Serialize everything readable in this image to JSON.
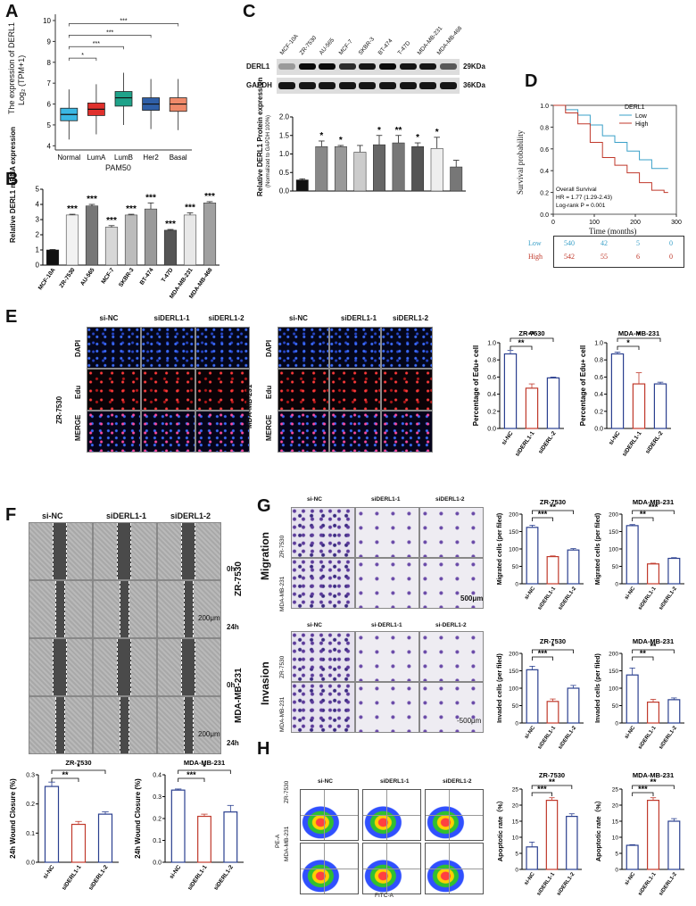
{
  "panels": {
    "A": {
      "label": "A",
      "ylabel": "The expression of DERL1",
      "ylabel2": "Log₂ (TPM+1)",
      "xlabel": "PAM50",
      "categories": [
        "Normal",
        "LumA",
        "LumB",
        "Her2",
        "Basal"
      ],
      "yticks": [
        "4",
        "5",
        "6",
        "7",
        "8",
        "9",
        "10"
      ],
      "sig": [
        "*",
        "***",
        "***",
        "***"
      ]
    },
    "B": {
      "label": "B",
      "ylabel": "Relative DERL1 mRNA expression",
      "yticks": [
        "0",
        "1",
        "2",
        "3",
        "4",
        "5"
      ],
      "categories": [
        "MCF-10A",
        "ZR-7530",
        "AU-565",
        "MCF-7",
        "SKBR-3",
        "BT-474",
        "T-47D",
        "MDA-MB-231",
        "MDA-MB-468"
      ],
      "sig": [
        "",
        "***",
        "***",
        "***",
        "***",
        "***",
        "***",
        "***",
        "***"
      ]
    },
    "C": {
      "label": "C",
      "lanes": [
        "MCF-10A",
        "ZR-7530",
        "AU-565",
        "MCF-7",
        "SKBR-3",
        "BT-474",
        "T-47D",
        "MDA-MB-231",
        "MDA-MB-468"
      ],
      "band1": "DERL1",
      "band2": "GAPDH",
      "kda1": "29KDa",
      "kda2": "36KDa",
      "ylabel": "Relative DERL1 Protein expression",
      "ylabel2": "(Normalized to GAPDH 100%)",
      "yticks": [
        "0.0",
        "0.5",
        "1.0",
        "1.5",
        "2.0"
      ],
      "sig": [
        "",
        "*",
        "*",
        "",
        "*",
        "**",
        "*",
        "*",
        ""
      ]
    },
    "D": {
      "label": "D",
      "legend_title": "DERL1",
      "legend_low": "Low",
      "legend_high": "High",
      "ylabel": "Survival probability",
      "xlabel": "Time (months)",
      "yticks": [
        "0.0",
        "0.2",
        "0.4",
        "0.6",
        "0.8",
        "1.0"
      ],
      "xticks": [
        "0",
        "100",
        "200",
        "300"
      ],
      "stat1": "Overall Survival",
      "stat2": "HR = 1.77 (1.29-2.43)",
      "stat3": "Log-rank P = 0.001",
      "risk_low": [
        "Low",
        "540",
        "42",
        "5",
        "0"
      ],
      "risk_high": [
        "High",
        "542",
        "55",
        "6",
        "0"
      ]
    },
    "E": {
      "label": "E",
      "groups": [
        "si-NC",
        "siDERL1-1",
        "siDERL1-2"
      ],
      "rows": [
        "DAPI",
        "Edu",
        "MERGE"
      ],
      "cell1": "ZR-7530",
      "cell2": "MDA-MB-231",
      "scale": "200μm",
      "chart_title1": "ZR-7530",
      "chart_title2": "MDA-MB-231",
      "ylabel": "Percentage of Edu+ cell",
      "yticks": [
        "0.0",
        "0.2",
        "0.4",
        "0.6",
        "0.8",
        "1.0"
      ],
      "xcats": [
        "si-NC",
        "siDERL1-1",
        "siDERL-2"
      ],
      "sig1": [
        "**",
        "**"
      ],
      "sig2": [
        "*",
        "*"
      ]
    },
    "F": {
      "label": "F",
      "groups": [
        "si-NC",
        "siDERL1-1",
        "siDERL1-2"
      ],
      "cell1": "ZR-7530",
      "cell2": "MDA-MB-231",
      "t0": "0h",
      "t24": "24h",
      "scale": "200μm",
      "chart_title1": "ZR-7530",
      "chart_title2": "MDA-MB-231",
      "ylabel": "24h Wound Closure (%)",
      "yticks1": [
        "0.0",
        "0.1",
        "0.2",
        "0.3"
      ],
      "yticks2": [
        "0.0",
        "0.1",
        "0.2",
        "0.3",
        "0.4"
      ],
      "xcats": [
        "si-NC",
        "siDERL1-1",
        "siDERL1-2"
      ],
      "sig1": [
        "**",
        "*"
      ],
      "sig2": [
        "***",
        "*"
      ]
    },
    "G": {
      "label": "G",
      "groups_top": [
        "si-NC",
        "siDERL1-1",
        "siDERL1-2"
      ],
      "groups_bot": [
        "si-NC",
        "si-DERL1-1",
        "si-DERL1-2"
      ],
      "row_mig": "Migration",
      "row_inv": "Invasion",
      "cell1": "ZR-7530",
      "cell2": "MDA-MB-231",
      "scale": "500μm",
      "scale2": "-500μm",
      "chart_titles": [
        "ZR-7530",
        "MDA-MB-231",
        "ZR-7530",
        "MDA-MB-231"
      ],
      "ylabel_mig": "Migrated cells (per filed)",
      "ylabel_inv": "Invaded cells (per filed)",
      "yticks_mig1": [
        "0",
        "50",
        "100",
        "150",
        "200"
      ],
      "yticks_mig2": [
        "0",
        "50",
        "100",
        "150",
        "200"
      ],
      "yticks_inv1": [
        "0",
        "50",
        "100",
        "150",
        "200"
      ],
      "yticks_inv2": [
        "0",
        "50",
        "100",
        "150",
        "200"
      ],
      "xcats": [
        "si-NC",
        "siDERL1-1",
        "siDERL1-2"
      ],
      "sig_mig1": [
        "***",
        "**"
      ],
      "sig_mig2": [
        "**",
        "***"
      ],
      "sig_inv1": [
        "***",
        "*"
      ],
      "sig_inv2": [
        "**",
        "**"
      ]
    },
    "H": {
      "label": "H",
      "groups": [
        "si-NC",
        "siDERL1-1",
        "siDERL1-2"
      ],
      "cell1": "ZR-7530",
      "cell2": "MDA-MB-231",
      "xaxis": "FITC-A",
      "yaxis": "PE-A",
      "chart_title1": "ZR-7530",
      "chart_title2": "MDA-MB-231",
      "ylabel": "Apoptotic rate（%）",
      "yticks1": [
        "0",
        "5",
        "10",
        "15",
        "20",
        "25"
      ],
      "yticks2": [
        "0",
        "5",
        "10",
        "15",
        "20",
        "25"
      ],
      "xcats": [
        "si-NC",
        "siDERL1-1",
        "siDERL1-2"
      ],
      "sig1": [
        "***",
        "**"
      ],
      "sig2": [
        "***",
        "**"
      ]
    }
  },
  "chart_data": [
    {
      "type": "box",
      "id": "A",
      "categories": [
        "Normal",
        "LumA",
        "LumB",
        "Her2",
        "Basal"
      ],
      "median": [
        5.5,
        5.75,
        6.3,
        6.0,
        6.0
      ],
      "q1": [
        5.2,
        5.45,
        5.9,
        5.7,
        5.65
      ],
      "q3": [
        5.8,
        6.05,
        6.6,
        6.3,
        6.3
      ],
      "ylim": [
        3.8,
        10.3
      ],
      "colors": [
        "#3bb7e3",
        "#e0302c",
        "#1fa38a",
        "#2f5fa7",
        "#f08a6a"
      ]
    },
    {
      "type": "bar",
      "id": "B",
      "categories": [
        "MCF-10A",
        "ZR-7530",
        "AU-565",
        "MCF-7",
        "SKBR-3",
        "BT-474",
        "T-47D",
        "MDA-MB-231",
        "MDA-MB-468"
      ],
      "values": [
        1.0,
        3.3,
        3.9,
        2.5,
        3.3,
        3.7,
        2.3,
        3.3,
        4.1
      ],
      "errors": [
        0.03,
        0.05,
        0.1,
        0.1,
        0.05,
        0.4,
        0.05,
        0.15,
        0.08
      ],
      "ylim": [
        0,
        5
      ]
    },
    {
      "type": "bar",
      "id": "C",
      "categories": [
        "MCF-10A",
        "ZR-7530",
        "AU-565",
        "MCF-7",
        "SKBR-3",
        "BT-474",
        "T-47D",
        "MDA-MB-231",
        "MDA-MB-468"
      ],
      "values": [
        0.3,
        1.2,
        1.2,
        1.05,
        1.25,
        1.3,
        1.2,
        1.15,
        0.65
      ],
      "errors": [
        0.03,
        0.15,
        0.03,
        0.18,
        0.25,
        0.2,
        0.1,
        0.3,
        0.18
      ],
      "ylim": [
        0,
        2.0
      ]
    },
    {
      "type": "line",
      "id": "D",
      "xlim": [
        0,
        300
      ],
      "ylim": [
        0,
        1
      ],
      "series": [
        {
          "name": "Low",
          "color": "#3aa0c8",
          "x": [
            0,
            30,
            60,
            90,
            120,
            150,
            180,
            210,
            240,
            270,
            280
          ],
          "y": [
            1.0,
            0.96,
            0.91,
            0.82,
            0.72,
            0.66,
            0.58,
            0.5,
            0.42,
            0.42,
            0.42
          ]
        },
        {
          "name": "High",
          "color": "#c0392b",
          "x": [
            0,
            30,
            60,
            90,
            120,
            150,
            180,
            210,
            240,
            270,
            280
          ],
          "y": [
            1.0,
            0.93,
            0.83,
            0.66,
            0.52,
            0.45,
            0.38,
            0.29,
            0.22,
            0.2,
            0.2
          ]
        }
      ]
    },
    {
      "type": "bar",
      "id": "E-ZR-7530",
      "categories": [
        "si-NC",
        "siDERL1-1",
        "siDERL-2"
      ],
      "values": [
        0.87,
        0.47,
        0.59
      ],
      "errors": [
        0.04,
        0.05,
        0.01
      ],
      "ylim": [
        0,
        1.0
      ]
    },
    {
      "type": "bar",
      "id": "E-MDA-MB-231",
      "categories": [
        "si-NC",
        "siDERL1-1",
        "siDERL-2"
      ],
      "values": [
        0.87,
        0.52,
        0.52
      ],
      "errors": [
        0.02,
        0.13,
        0.02
      ],
      "ylim": [
        0,
        1.0
      ]
    },
    {
      "type": "bar",
      "id": "F-ZR-7530",
      "categories": [
        "si-NC",
        "siDERL1-1",
        "siDERL1-2"
      ],
      "values": [
        0.26,
        0.13,
        0.165
      ],
      "errors": [
        0.015,
        0.01,
        0.008
      ],
      "ylim": [
        0,
        0.3
      ]
    },
    {
      "type": "bar",
      "id": "F-MDA-MB-231",
      "categories": [
        "si-NC",
        "siDERL1-1",
        "siDERL1-2"
      ],
      "values": [
        0.33,
        0.21,
        0.23
      ],
      "errors": [
        0.005,
        0.01,
        0.03
      ],
      "ylim": [
        0,
        0.4
      ]
    },
    {
      "type": "bar",
      "id": "G-mig-ZR-7530",
      "categories": [
        "si-NC",
        "siDERL1-1",
        "siDERL1-2"
      ],
      "values": [
        162,
        78,
        97
      ],
      "errors": [
        6,
        2,
        4
      ],
      "ylim": [
        0,
        200
      ]
    },
    {
      "type": "bar",
      "id": "G-mig-MDA-MB-231",
      "categories": [
        "si-NC",
        "siDERL1-1",
        "siDERL1-2"
      ],
      "values": [
        167,
        57,
        73
      ],
      "errors": [
        3,
        2,
        2
      ],
      "ylim": [
        0,
        200
      ]
    },
    {
      "type": "bar",
      "id": "G-inv-ZR-7530",
      "categories": [
        "si-NC",
        "siDERL1-1",
        "siDERL1-2"
      ],
      "values": [
        153,
        62,
        100
      ],
      "errors": [
        10,
        7,
        8
      ],
      "ylim": [
        0,
        200
      ]
    },
    {
      "type": "bar",
      "id": "G-inv-MDA-MB-231",
      "categories": [
        "si-NC",
        "siDERL1-1",
        "siDERL1-2"
      ],
      "values": [
        138,
        60,
        67
      ],
      "errors": [
        20,
        8,
        5
      ],
      "ylim": [
        0,
        200
      ]
    },
    {
      "type": "bar",
      "id": "H-ZR-7530",
      "categories": [
        "si-NC",
        "siDERL1-1",
        "siDERL1-2"
      ],
      "values": [
        7,
        21.5,
        16.5
      ],
      "errors": [
        1.5,
        0.8,
        0.8
      ],
      "ylim": [
        0,
        25
      ]
    },
    {
      "type": "bar",
      "id": "H-MDA-MB-231",
      "categories": [
        "si-NC",
        "siDERL1-1",
        "siDERL1-2"
      ],
      "values": [
        7.5,
        21.5,
        15
      ],
      "errors": [
        0.2,
        0.8,
        0.8
      ],
      "ylim": [
        0,
        25
      ]
    }
  ]
}
